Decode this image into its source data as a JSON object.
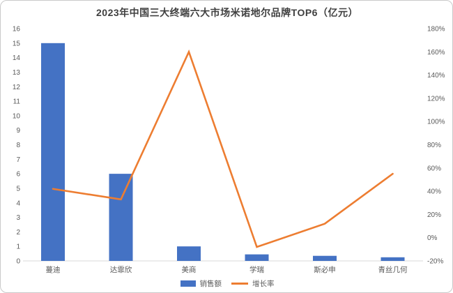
{
  "window": {
    "background": "#ffffff",
    "border_color": "#c9c9c9"
  },
  "chart_data": {
    "type": "combo (bar + line, dual axis)",
    "title": "2023年中国三大终端六大市场米诺地尔品牌TOP6（亿元）",
    "categories": [
      "蔓迪",
      "达霏欣",
      "美商",
      "学瑞",
      "斯必申",
      "青丝几何"
    ],
    "series": [
      {
        "name": "销售额",
        "type": "bar",
        "axis": "left",
        "unit": "亿元",
        "values": [
          15,
          6,
          1,
          0.45,
          0.35,
          0.25
        ],
        "color": "#4472c4"
      },
      {
        "name": "增长率",
        "type": "line",
        "axis": "right",
        "unit": "%",
        "values": [
          42,
          33,
          160,
          -8,
          12,
          55
        ],
        "color": "#ed7d31"
      }
    ],
    "left_axis": {
      "min": 0,
      "max": 16,
      "step": 1
    },
    "right_axis": {
      "min": -20,
      "max": 180,
      "step": 20,
      "suffix": "%"
    },
    "grid": "none",
    "legend_position": "bottom",
    "tick_color": "#595959",
    "axisline_color": "#d9d9d9"
  },
  "legend": {
    "sales_label": "销售额",
    "growth_label": "增长率"
  }
}
